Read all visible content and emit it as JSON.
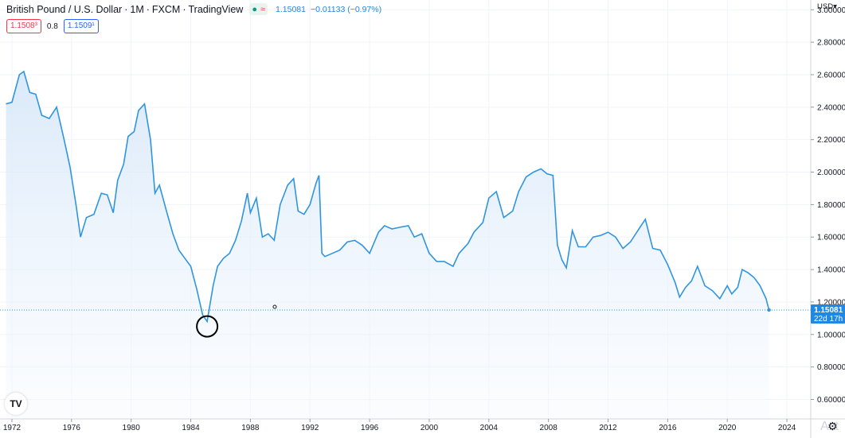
{
  "header": {
    "symbol": "British Pound / U.S. Dollar",
    "interval": "1M",
    "exchange": "FXCM",
    "source": "TradingView",
    "sep": "·",
    "slash_sep": "/",
    "status_dot": "●",
    "status_wave": "≈",
    "last_price": "1.15081",
    "change": "−0.01133 (−0.97%)"
  },
  "quote": {
    "bid": "1.1508³",
    "spread": "0.8",
    "ask": "1.1509¹"
  },
  "currency_label": "USD",
  "currency_arrow": "▾",
  "price_badge": {
    "value": "1.15081",
    "countdown": "22d 17h"
  },
  "logo_text": "TV",
  "watermark_text": "Act",
  "colors": {
    "line": "#2f95e0",
    "fill_top": "#dbe9f9",
    "grid": "#f0f3fa",
    "badge": "#1e88e5",
    "bid": "#f23645",
    "ask": "#2962ff",
    "accent": "#089981"
  },
  "icons": [
    "tradingview-logo-icon",
    "gear-icon",
    "status-dot-icon",
    "wave-icon"
  ],
  "chart_data": {
    "type": "area",
    "title": "British Pound / U.S. Dollar · 1M · FXCM · TradingView",
    "xlabel": "",
    "ylabel": "",
    "currency": "USD",
    "xlim": [
      1971.2,
      2025.6
    ],
    "ylim": [
      0.48,
      3.06
    ],
    "grid": true,
    "x_ticks": [
      "1972",
      "1976",
      "1980",
      "1984",
      "1988",
      "1992",
      "1996",
      "2000",
      "2004",
      "2008",
      "2012",
      "2016",
      "2020",
      "2024"
    ],
    "y_ticks": [
      "0.600000",
      "0.800000",
      "1.000000",
      "1.200000",
      "1.400000",
      "1.600000",
      "1.800000",
      "2.000000",
      "2.200000",
      "2.400000",
      "2.600000",
      "2.800000",
      "3.000000"
    ],
    "last_value": 1.15081,
    "highlighted_low": {
      "x": 1985.1,
      "y": 1.05
    },
    "series": [
      {
        "x": [
          1971.6,
          1972.0,
          1972.5,
          1972.8,
          1973.2,
          1973.6,
          1974.0,
          1974.5,
          1975.0,
          1975.5,
          1975.9,
          1976.3,
          1976.6,
          1977.0,
          1977.5,
          1978.0,
          1978.4,
          1978.8,
          1979.1,
          1979.5,
          1979.8,
          1980.2,
          1980.5,
          1980.9,
          1981.3,
          1981.6,
          1981.9,
          1982.4,
          1982.8,
          1983.2,
          1983.6,
          1984.0,
          1984.4,
          1984.8,
          1985.1,
          1985.5,
          1985.8,
          1986.2,
          1986.6,
          1987.0,
          1987.4,
          1987.8,
          1988.0,
          1988.4,
          1988.8,
          1989.2,
          1989.6,
          1990.0,
          1990.5,
          1990.9,
          1991.2,
          1991.6,
          1992.0,
          1992.4,
          1992.6,
          1992.8,
          1993.0,
          1993.5,
          1994.0,
          1994.5,
          1995.0,
          1995.5,
          1996.0,
          1996.6,
          1997.0,
          1997.5,
          1998.0,
          1998.6,
          1999.0,
          1999.5,
          2000.0,
          2000.5,
          2001.0,
          2001.6,
          2002.0,
          2002.6,
          2003.0,
          2003.6,
          2004.0,
          2004.5,
          2005.0,
          2005.6,
          2006.0,
          2006.5,
          2007.0,
          2007.5,
          2007.9,
          2008.3,
          2008.6,
          2008.9,
          2009.2,
          2009.6,
          2010.0,
          2010.5,
          2011.0,
          2011.5,
          2012.0,
          2012.5,
          2013.0,
          2013.5,
          2014.0,
          2014.5,
          2015.0,
          2015.5,
          2016.0,
          2016.5,
          2016.8,
          2017.2,
          2017.6,
          2018.0,
          2018.5,
          2019.0,
          2019.5,
          2020.0,
          2020.3,
          2020.7,
          2021.0,
          2021.4,
          2021.8,
          2022.2,
          2022.6,
          2022.8
        ],
        "y": [
          2.42,
          2.43,
          2.6,
          2.62,
          2.49,
          2.48,
          2.35,
          2.33,
          2.4,
          2.2,
          2.03,
          1.8,
          1.6,
          1.72,
          1.74,
          1.87,
          1.86,
          1.75,
          1.95,
          2.05,
          2.22,
          2.25,
          2.38,
          2.42,
          2.2,
          1.87,
          1.92,
          1.75,
          1.62,
          1.52,
          1.47,
          1.42,
          1.28,
          1.12,
          1.08,
          1.3,
          1.42,
          1.47,
          1.5,
          1.58,
          1.7,
          1.87,
          1.75,
          1.84,
          1.6,
          1.62,
          1.58,
          1.8,
          1.92,
          1.96,
          1.76,
          1.74,
          1.8,
          1.93,
          1.98,
          1.5,
          1.48,
          1.5,
          1.52,
          1.57,
          1.58,
          1.55,
          1.5,
          1.63,
          1.67,
          1.65,
          1.66,
          1.67,
          1.6,
          1.62,
          1.5,
          1.45,
          1.45,
          1.42,
          1.5,
          1.56,
          1.63,
          1.69,
          1.84,
          1.88,
          1.72,
          1.76,
          1.88,
          1.97,
          2.0,
          2.02,
          1.99,
          1.98,
          1.55,
          1.46,
          1.41,
          1.64,
          1.54,
          1.54,
          1.6,
          1.61,
          1.63,
          1.6,
          1.53,
          1.57,
          1.64,
          1.71,
          1.53,
          1.52,
          1.43,
          1.32,
          1.23,
          1.29,
          1.33,
          1.42,
          1.3,
          1.27,
          1.22,
          1.3,
          1.25,
          1.29,
          1.4,
          1.38,
          1.35,
          1.3,
          1.22,
          1.15
        ]
      }
    ]
  }
}
